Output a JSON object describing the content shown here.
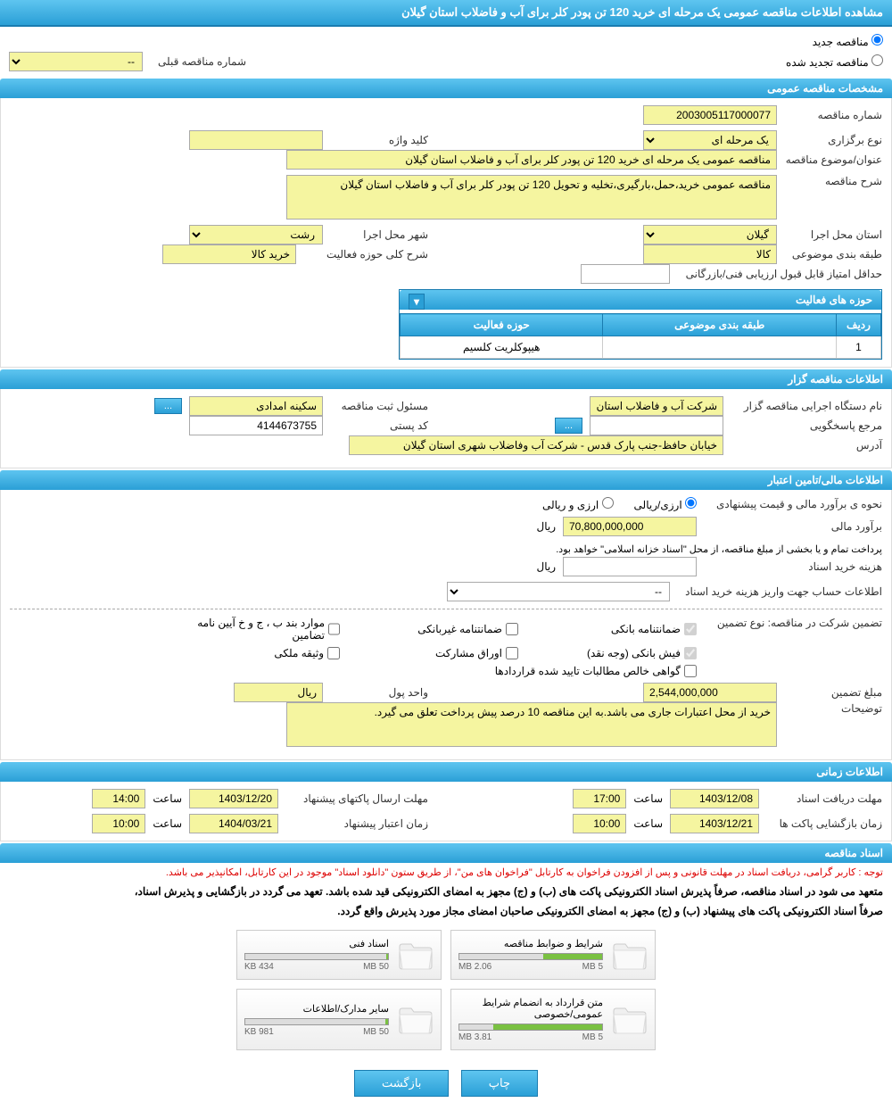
{
  "page_title": "مشاهده اطلاعات مناقصه عمومی یک مرحله ای خرید 120 تن پودر کلر برای آب و فاضلاب استان گیلان",
  "radio": {
    "new_tender": "مناقصه جدید",
    "renewed_tender": "مناقصه تجدید شده",
    "prev_tender_label": "شماره مناقصه قبلی",
    "prev_tender_value": "--"
  },
  "sections": {
    "general": "مشخصات مناقصه عمومی",
    "organizer": "اطلاعات مناقصه گزار",
    "financial": "اطلاعات مالی/تامین اعتبار",
    "timing": "اطلاعات زمانی",
    "documents": "اسناد مناقصه"
  },
  "general": {
    "tender_no_label": "شماره مناقصه",
    "tender_no": "2003005117000077",
    "type_label": "نوع برگزاری",
    "type_value": "یک مرحله ای",
    "keyword_label": "کلید واژه",
    "keyword_value": "",
    "subject_label": "عنوان/موضوع مناقصه",
    "subject_value": "مناقصه عمومی یک مرحله ای خرید 120 تن پودر کلر برای آب و فاضلاب استان گیلان",
    "desc_label": "شرح مناقصه",
    "desc_value": "مناقصه عمومی خرید،حمل،بارگیری،تخلیه و تحویل 120 تن پودر کلر برای آب و فاضلاب استان گیلان",
    "province_label": "استان محل اجرا",
    "province_value": "گیلان",
    "city_label": "شهر محل اجرا",
    "city_value": "رشت",
    "category_label": "طبقه بندی موضوعی",
    "category_value": "کالا",
    "activity_desc_label": "شرح کلی حوزه فعالیت",
    "activity_desc_value": "خرید کالا",
    "min_score_label": "حداقل امتیاز قابل قبول ارزیابی فنی/بازرگانی",
    "min_score_value": ""
  },
  "activity_table": {
    "title": "حوزه های فعالیت",
    "col_row": "ردیف",
    "col_category": "طبقه بندی موضوعی",
    "col_activity": "حوزه فعالیت",
    "rows": [
      {
        "n": "1",
        "category": "",
        "activity": "هیپوکلریت کلسیم"
      }
    ]
  },
  "organizer": {
    "exec_label": "نام دستگاه اجرایی مناقصه گزار",
    "exec_value": "شرکت آب و فاضلاب استان",
    "registrant_label": "مسئول ثبت مناقصه",
    "registrant_value": "سکینه امدادی",
    "btn_more": "...",
    "contact_label": "مرجع پاسخگویی",
    "contact_value": "",
    "postal_label": "کد پستی",
    "postal_value": "4144673755",
    "address_label": "آدرس",
    "address_value": "خیابان حافظ-جنب پارک قدس - شرکت آب وفاضلاب شهری استان گیلان"
  },
  "financial": {
    "estimate_method_label": "نحوه ی برآورد مالی و قیمت پیشنهادی",
    "opt_arzi_riali": "ارزی/ریالی",
    "opt_arzi_riali2": "ارزی و ریالی",
    "estimate_label": "برآورد مالی",
    "estimate_value": "70,800,000,000",
    "unit_rial": "ریال",
    "treasury_note": "پرداخت تمام و یا بخشی از مبلغ مناقصه، از محل \"اسناد خزانه اسلامی\" خواهد بود.",
    "doc_fee_label": "هزینه خرید اسناد",
    "doc_fee_value": "",
    "account_label": "اطلاعات حساب جهت واریز هزینه خرید اسناد",
    "account_value": "--",
    "guarantee_type_label": "تضمین شرکت در مناقصه:   نوع تضمین",
    "chk_bank_guarantee": "ضمانتنامه بانکی",
    "chk_nonbank_guarantee": "ضمانتنامه غیربانکی",
    "chk_bylaw": "موارد بند ب ، ج و خ آیین نامه تضامین",
    "chk_bank_receipt": "فیش بانکی (وجه نقد)",
    "chk_bonds": "اوراق مشارکت",
    "chk_property": "وثیقه ملکی",
    "chk_certificate": "گواهی خالص مطالبات تایید شده قراردادها",
    "guarantee_amount_label": "مبلغ تضمین",
    "guarantee_amount_value": "2,544,000,000",
    "currency_label": "واحد پول",
    "currency_value": "ریال",
    "notes_label": "توضیحات",
    "notes_value": "خرید از محل اعتبارات جاری می باشد.به این مناقصه 10 درصد پیش پرداخت تعلق می گیرد."
  },
  "timing": {
    "doc_deadline_label": "مهلت دریافت اسناد",
    "doc_deadline_date": "1403/12/08",
    "doc_deadline_time": "17:00",
    "proposal_deadline_label": "مهلت ارسال پاکتهای پیشنهاد",
    "proposal_deadline_date": "1403/12/20",
    "proposal_deadline_time": "14:00",
    "opening_label": "زمان بازگشایی پاکت ها",
    "opening_date": "1403/12/21",
    "opening_time": "10:00",
    "validity_label": "زمان اعتبار پیشنهاد",
    "validity_date": "1404/03/21",
    "validity_time": "10:00",
    "time_label": "ساعت"
  },
  "documents": {
    "notice_red": "توجه : کاربر گرامی، دریافت اسناد در مهلت قانونی و پس از افزودن فراخوان به کارتابل \"فراخوان های من\"، از طریق ستون \"دانلود اسناد\" موجود در این کارتابل، امکانپذیر می باشد.",
    "notice_bold1": "متعهد می شود در اسناد مناقصه، صرفاً پذیرش اسناد الکترونیکی پاکت های (ب) و (ج) مجهز به امضای الکترونیکی قید شده باشد. تعهد می گردد در بازگشایی و پذیرش اسناد،",
    "notice_bold2": "صرفاً اسناد الکترونیکی پاکت های پیشنهاد (ب) و (ج) مجهز به امضای الکترونیکی صاحبان امضای مجاز مورد پذیرش واقع گردد.",
    "files": [
      {
        "name": "شرایط و ضوابط مناقصه",
        "used": "2.06 MB",
        "total": "5 MB",
        "pct": 41
      },
      {
        "name": "اسناد فنی",
        "used": "434 KB",
        "total": "50 MB",
        "pct": 1
      },
      {
        "name": "متن قرارداد به انضمام شرایط عمومی/خصوصی",
        "used": "3.81 MB",
        "total": "5 MB",
        "pct": 76
      },
      {
        "name": "سایر مدارک/اطلاعات",
        "used": "981 KB",
        "total": "50 MB",
        "pct": 2
      }
    ]
  },
  "buttons": {
    "print": "چاپ",
    "back": "بازگشت"
  },
  "colors": {
    "header_bg_top": "#5ec5f0",
    "header_bg_bottom": "#2a9fd6",
    "border": "#1a7cb0",
    "input_yellow": "#f5f5a0",
    "progress_green": "#7ac142"
  }
}
